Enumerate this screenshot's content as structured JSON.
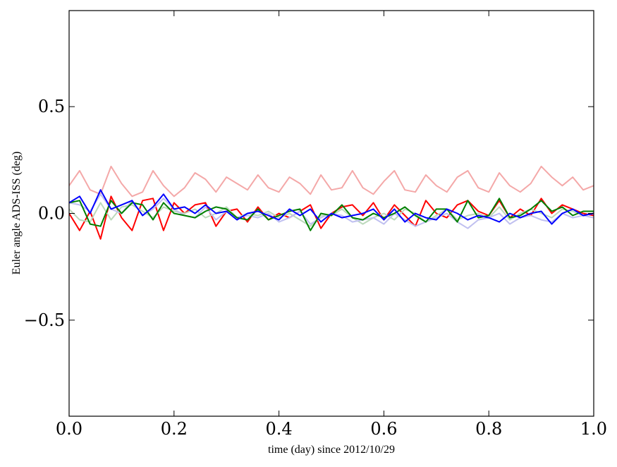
{
  "chart_data": {
    "type": "line",
    "title": "",
    "xlabel": "time (day) since 2012/10/29",
    "ylabel": "Euler angle ADS-ISS (deg)",
    "xlim": [
      0.0,
      1.0
    ],
    "ylim": [
      -0.95,
      0.95
    ],
    "grid": false,
    "legend": "none",
    "xticks": [
      0.0,
      0.2,
      0.4,
      0.6,
      0.8,
      1.0
    ],
    "xtick_labels": [
      "0.0",
      "0.2",
      "0.4",
      "0.6",
      "0.8",
      "1.0"
    ],
    "yticks": [
      -0.5,
      0.0,
      0.5
    ],
    "ytick_labels": [
      "−0.5",
      "0.0",
      "0.5"
    ],
    "x": [
      0.0,
      0.02,
      0.04,
      0.06,
      0.08,
      0.1,
      0.12,
      0.14,
      0.16,
      0.18,
      0.2,
      0.22,
      0.24,
      0.26,
      0.28,
      0.3,
      0.32,
      0.34,
      0.36,
      0.38,
      0.4,
      0.42,
      0.44,
      0.46,
      0.48,
      0.5,
      0.52,
      0.54,
      0.56,
      0.58,
      0.6,
      0.62,
      0.64,
      0.66,
      0.68,
      0.7,
      0.72,
      0.74,
      0.76,
      0.78,
      0.8,
      0.82,
      0.84,
      0.86,
      0.88,
      0.9,
      0.92,
      0.94,
      0.96,
      0.98,
      1.0
    ],
    "series": [
      {
        "color": "#f4a8a8",
        "values": [
          0.13,
          0.2,
          0.11,
          0.09,
          0.22,
          0.14,
          0.08,
          0.1,
          0.2,
          0.13,
          0.08,
          0.12,
          0.19,
          0.16,
          0.1,
          0.17,
          0.14,
          0.11,
          0.18,
          0.12,
          0.1,
          0.17,
          0.14,
          0.09,
          0.18,
          0.11,
          0.12,
          0.2,
          0.12,
          0.09,
          0.15,
          0.2,
          0.11,
          0.1,
          0.18,
          0.13,
          0.1,
          0.17,
          0.2,
          0.12,
          0.1,
          0.19,
          0.13,
          0.1,
          0.14,
          0.22,
          0.17,
          0.13,
          0.17,
          0.11,
          0.13
        ]
      },
      {
        "color": "#ff0000",
        "values": [
          0.0,
          -0.08,
          0.01,
          -0.12,
          0.08,
          -0.02,
          -0.08,
          0.06,
          0.07,
          -0.08,
          0.05,
          0.0,
          0.04,
          0.05,
          -0.06,
          0.01,
          0.02,
          -0.04,
          0.03,
          -0.03,
          0.0,
          -0.02,
          0.01,
          0.04,
          -0.07,
          0.0,
          0.03,
          0.04,
          -0.01,
          0.05,
          -0.03,
          0.04,
          -0.01,
          -0.06,
          0.06,
          0.0,
          -0.02,
          0.04,
          0.06,
          0.01,
          -0.01,
          0.06,
          -0.02,
          0.02,
          -0.01,
          0.07,
          0.0,
          0.04,
          0.02,
          0.0,
          -0.01
        ]
      },
      {
        "color": "#bcd9bc",
        "values": [
          0.02,
          -0.03,
          -0.04,
          0.05,
          -0.03,
          0.03,
          0.04,
          0.01,
          -0.02,
          0.03,
          0.01,
          0.0,
          0.02,
          -0.02,
          0.0,
          0.03,
          -0.02,
          0.0,
          -0.01,
          0.01,
          -0.02,
          0.0,
          -0.03,
          -0.06,
          -0.01,
          -0.01,
          0.02,
          -0.02,
          -0.05,
          -0.02,
          0.0,
          -0.03,
          0.02,
          0.0,
          -0.04,
          -0.01,
          0.02,
          -0.03,
          -0.01,
          0.0,
          -0.02,
          0.03,
          -0.03,
          0.0,
          0.02,
          0.0,
          -0.02,
          0.02,
          0.01,
          -0.01,
          0.0
        ]
      },
      {
        "color": "#c0c0f0",
        "values": [
          0.05,
          0.04,
          0.01,
          0.09,
          0.02,
          0.0,
          0.06,
          -0.01,
          0.02,
          0.07,
          0.02,
          -0.01,
          -0.02,
          0.03,
          -0.03,
          0.01,
          -0.02,
          -0.01,
          -0.02,
          0.0,
          -0.04,
          -0.02,
          0.01,
          -0.05,
          -0.02,
          0.0,
          -0.01,
          -0.04,
          -0.03,
          -0.02,
          -0.05,
          0.0,
          -0.03,
          -0.06,
          -0.04,
          -0.02,
          0.0,
          -0.04,
          -0.07,
          -0.03,
          -0.02,
          0.0,
          -0.05,
          -0.02,
          -0.01,
          -0.03,
          -0.04,
          0.0,
          -0.02,
          -0.01,
          -0.02
        ]
      },
      {
        "color": "#008000",
        "values": [
          0.05,
          0.06,
          -0.05,
          -0.06,
          0.06,
          0.0,
          0.05,
          0.04,
          -0.03,
          0.05,
          0.0,
          -0.01,
          -0.02,
          0.01,
          0.03,
          0.02,
          -0.02,
          -0.03,
          0.02,
          -0.03,
          -0.01,
          0.01,
          0.02,
          -0.08,
          0.0,
          -0.01,
          0.04,
          -0.02,
          -0.03,
          0.0,
          -0.02,
          0.0,
          0.03,
          -0.01,
          -0.04,
          0.02,
          0.02,
          -0.04,
          0.06,
          -0.02,
          -0.01,
          0.07,
          -0.02,
          -0.01,
          0.02,
          0.06,
          0.01,
          0.03,
          -0.01,
          0.01,
          0.01
        ]
      },
      {
        "color": "#0000ff",
        "values": [
          0.05,
          0.08,
          0.0,
          0.11,
          0.02,
          0.04,
          0.06,
          -0.01,
          0.03,
          0.09,
          0.02,
          0.03,
          0.0,
          0.04,
          0.0,
          0.01,
          -0.03,
          0.0,
          0.01,
          -0.01,
          -0.03,
          0.02,
          -0.01,
          0.02,
          -0.04,
          0.0,
          -0.02,
          -0.01,
          0.0,
          0.02,
          -0.03,
          0.02,
          -0.04,
          0.0,
          -0.02,
          -0.03,
          0.02,
          0.0,
          -0.03,
          -0.01,
          -0.02,
          -0.04,
          0.0,
          -0.02,
          0.0,
          0.01,
          -0.05,
          0.0,
          0.02,
          -0.01,
          0.0
        ]
      }
    ]
  }
}
